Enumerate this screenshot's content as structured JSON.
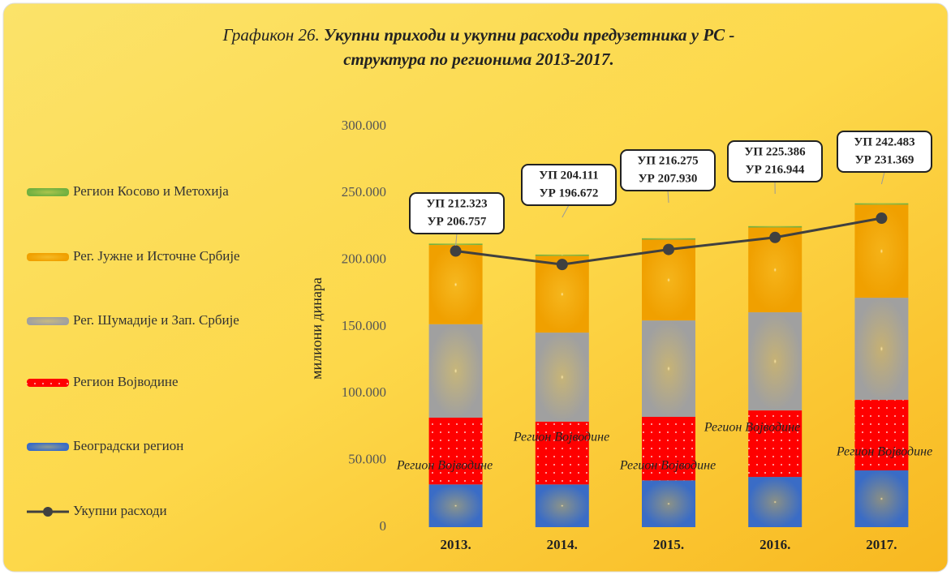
{
  "chart_data": {
    "type": "stacked_bar_line",
    "title_label": "Графикон 26.",
    "title_lines": [
      "Укупни приходи и укупни расходи предузетника у РС -",
      "структура по регионима 2013-2017."
    ],
    "y_label": "милиони динара",
    "categories": [
      "2013.",
      "2014.",
      "2015.",
      "2016.",
      "2017."
    ],
    "series": [
      {
        "name": "Београдски регион",
        "color": "#3a6cc6",
        "fill": "radial",
        "values": [
          32000,
          32000,
          35000,
          37600,
          42500
        ]
      },
      {
        "name": "Регион Војводине",
        "color": "#ff0000",
        "fill": "dots",
        "values": [
          50000,
          47000,
          47600,
          49800,
          52800
        ]
      },
      {
        "name": "Рег. Шумадије и Зап. Србије",
        "color": "#a0a0a0",
        "fill": "radial",
        "values": [
          70000,
          66700,
          72200,
          73500,
          76500
        ]
      },
      {
        "name": "Рег. Јужне и Источне Србије",
        "color": "#f0a000",
        "fill": "radial",
        "values": [
          59300,
          57400,
          60500,
          63500,
          69700
        ]
      },
      {
        "name": "Регион Косово и Метохија",
        "color": "#70b040",
        "fill": "radial",
        "values": [
          1000,
          1000,
          1000,
          1000,
          1000
        ]
      },
      {
        "name": "Укупни расходи",
        "type": "line",
        "color": "#404040",
        "values": [
          206757,
          196672,
          207930,
          216944,
          231369
        ]
      }
    ],
    "bar_labels": [
      "Регион Војводине",
      "Регион Војводине",
      "Регион Војводине",
      "Регион Војводине",
      "Регион Војводине"
    ],
    "annotations": [
      [
        "УП 212.323",
        "УР 206.757"
      ],
      [
        "УП 204.111",
        "УР  196.672"
      ],
      [
        "УП 216.275",
        "УР 207.930"
      ],
      [
        "УП 225.386",
        "УР 216.944"
      ],
      [
        "УП 242.483",
        "УР 231.369"
      ]
    ],
    "ylim": [
      0,
      300000
    ],
    "yticks": [
      0,
      {
        "value": 50000,
        "label": "50.000"
      },
      {
        "value": 100000,
        "label": "100.000"
      },
      {
        "value": 150000,
        "label": "150.000"
      },
      {
        "value": 200000,
        "label": "200.000"
      },
      {
        "value": 250000,
        "label": "250.000"
      },
      {
        "value": 300000,
        "label": "300.000"
      }
    ],
    "legend": "left"
  }
}
